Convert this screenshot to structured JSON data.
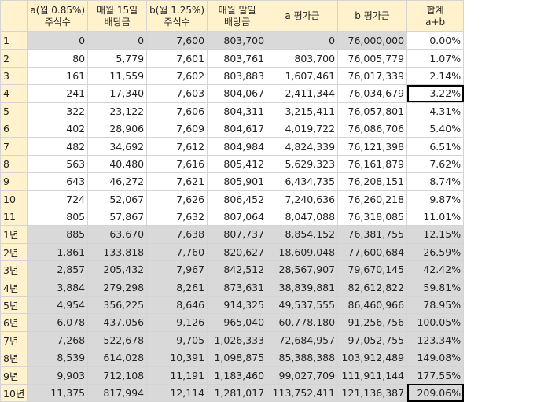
{
  "headers": [
    {
      "l1": "",
      "l2": ""
    },
    {
      "l1": "a(월 0.85%)",
      "l2": "주식수"
    },
    {
      "l1": "매월 15일",
      "l2": "배당금"
    },
    {
      "l1": "b(월 1.25%)",
      "l2": "주식수"
    },
    {
      "l1": "매월 말일",
      "l2": "배당금"
    },
    {
      "l1": "a 평가금",
      "l2": ""
    },
    {
      "l1": "b 평가금",
      "l2": ""
    },
    {
      "l1": "합계",
      "l2": "a+b"
    }
  ],
  "rows": [
    [
      "1",
      "0",
      "0",
      "7,600",
      "803,700",
      "0",
      "76,000,000",
      "0.00%"
    ],
    [
      "2",
      "80",
      "5,779",
      "7,601",
      "803,761",
      "803,700",
      "76,005,779",
      "1.07%"
    ],
    [
      "3",
      "161",
      "11,559",
      "7,602",
      "803,883",
      "1,607,461",
      "76,017,339",
      "2.14%"
    ],
    [
      "4",
      "241",
      "17,340",
      "7,603",
      "804,067",
      "2,411,344",
      "76,034,679",
      "3.22%"
    ],
    [
      "5",
      "322",
      "23,122",
      "7,606",
      "804,311",
      "3,215,411",
      "76,057,801",
      "4.31%"
    ],
    [
      "6",
      "402",
      "28,906",
      "7,609",
      "804,617",
      "4,019,722",
      "76,086,706",
      "5.40%"
    ],
    [
      "7",
      "482",
      "34,692",
      "7,612",
      "804,984",
      "4,824,339",
      "76,121,398",
      "6.51%"
    ],
    [
      "8",
      "563",
      "40,480",
      "7,616",
      "805,412",
      "5,629,323",
      "76,161,879",
      "7.62%"
    ],
    [
      "9",
      "643",
      "46,272",
      "7,621",
      "805,901",
      "6,434,735",
      "76,208,151",
      "8.74%"
    ],
    [
      "10",
      "724",
      "52,067",
      "7,626",
      "806,452",
      "7,240,636",
      "76,260,218",
      "9.87%"
    ],
    [
      "11",
      "805",
      "57,867",
      "7,632",
      "807,064",
      "8,047,088",
      "76,318,085",
      "11.01%"
    ],
    [
      "1년",
      "885",
      "63,670",
      "7,638",
      "807,737",
      "8,854,152",
      "76,381,755",
      "12.15%"
    ],
    [
      "2년",
      "1,861",
      "133,818",
      "7,760",
      "820,627",
      "18,609,048",
      "77,600,684",
      "26.59%"
    ],
    [
      "3년",
      "2,857",
      "205,432",
      "7,967",
      "842,512",
      "28,567,907",
      "79,670,145",
      "42.42%"
    ],
    [
      "4년",
      "3,884",
      "279,298",
      "8,261",
      "873,631",
      "38,839,881",
      "82,612,822",
      "59.81%"
    ],
    [
      "5년",
      "4,954",
      "356,225",
      "8,646",
      "914,325",
      "49,537,555",
      "86,460,966",
      "78.95%"
    ],
    [
      "6년",
      "6,078",
      "437,056",
      "9,126",
      "965,040",
      "60,778,180",
      "91,256,756",
      "100.05%"
    ],
    [
      "7년",
      "7,268",
      "522,678",
      "9,705",
      "1,026,333",
      "72,684,957",
      "97,052,755",
      "123.34%"
    ],
    [
      "8년",
      "8,539",
      "614,028",
      "10,391",
      "1,098,875",
      "85,388,388",
      "103,912,489",
      "149.08%"
    ],
    [
      "9년",
      "9,903",
      "712,108",
      "11,191",
      "1,183,460",
      "99,027,709",
      "111,911,144",
      "177.55%"
    ],
    [
      "10년",
      "11,375",
      "817,994",
      "12,114",
      "1,281,017",
      "113,752,411",
      "121,136,387",
      "209.06%"
    ]
  ]
}
